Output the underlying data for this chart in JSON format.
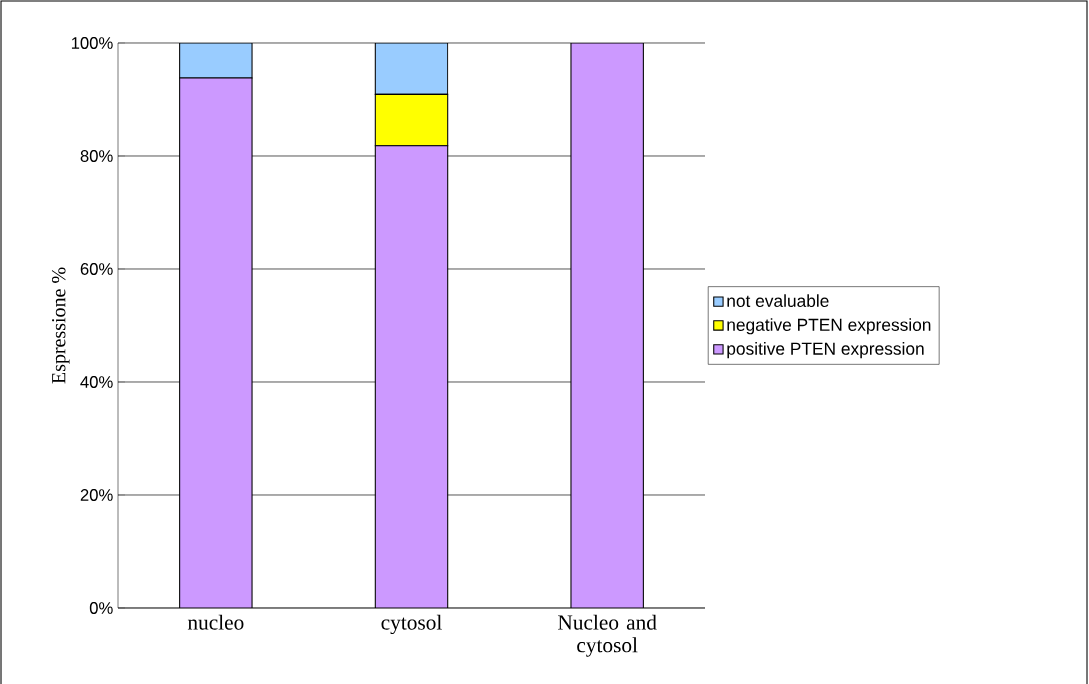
{
  "chart_data": {
    "type": "bar",
    "stacked": true,
    "ylabel": "Espressione %",
    "categories": [
      "nucleo",
      "cytosol",
      "Nucleo and cytosol"
    ],
    "series": [
      {
        "name": "positive PTEN expression",
        "color": "#cc99ff",
        "values": [
          93.8,
          81.8,
          100
        ]
      },
      {
        "name": "negative PTEN expression",
        "color": "#ffff00",
        "values": [
          0,
          9.1,
          0
        ]
      },
      {
        "name": "not evaluable",
        "color": "#99ccff",
        "values": [
          6.2,
          9.1,
          0
        ]
      }
    ],
    "ylim": [
      0,
      100
    ],
    "yticks": [
      {
        "value": 0,
        "label": "0%"
      },
      {
        "value": 20,
        "label": "20%"
      },
      {
        "value": 40,
        "label": "40%"
      },
      {
        "value": 60,
        "label": "60%"
      },
      {
        "value": 80,
        "label": "80%"
      },
      {
        "value": 100,
        "label": "100%"
      }
    ],
    "grid": "y",
    "legend": "right"
  }
}
